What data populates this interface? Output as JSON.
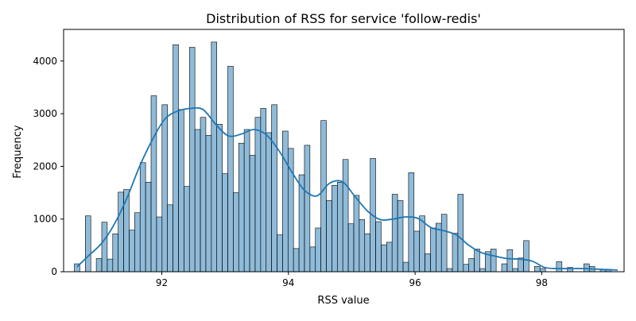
{
  "chart_data": {
    "type": "histogram",
    "title": "Distribution of RSS for service 'follow-redis'",
    "xlabel": "RSS value",
    "ylabel": "Frequency",
    "xlim": [
      90.45,
      99.3
    ],
    "ylim": [
      0,
      4600
    ],
    "x_ticks": [
      92,
      94,
      96,
      98
    ],
    "y_ticks": [
      0,
      1000,
      2000,
      3000,
      4000
    ],
    "bin_start": 90.62,
    "bin_width": 0.0865,
    "counts": [
      150,
      0,
      1060,
      0,
      250,
      940,
      240,
      720,
      1510,
      1560,
      790,
      1120,
      2070,
      1700,
      3340,
      1040,
      3170,
      1270,
      4310,
      3080,
      1620,
      4260,
      2700,
      2930,
      2590,
      4360,
      2800,
      1860,
      3900,
      1500,
      2440,
      2700,
      2210,
      2930,
      3100,
      2640,
      3170,
      700,
      2670,
      2340,
      440,
      1840,
      2400,
      470,
      830,
      2870,
      1350,
      1640,
      1700,
      2130,
      910,
      1450,
      990,
      720,
      2150,
      950,
      510,
      560,
      1470,
      1350,
      180,
      1880,
      770,
      1060,
      340,
      830,
      920,
      1090,
      60,
      730,
      1470,
      140,
      250,
      430,
      60,
      380,
      430,
      0,
      150,
      420,
      60,
      260,
      590,
      0,
      100,
      60,
      0,
      0,
      190,
      0,
      80,
      0,
      0,
      150,
      100,
      0,
      40,
      40
    ],
    "kde": {
      "x": [
        90.66,
        90.85,
        91.05,
        91.25,
        91.45,
        91.65,
        91.85,
        92.05,
        92.25,
        92.45,
        92.65,
        92.85,
        93.05,
        93.25,
        93.45,
        93.65,
        93.85,
        94.05,
        94.25,
        94.45,
        94.65,
        94.85,
        95.05,
        95.25,
        95.45,
        95.65,
        95.85,
        96.05,
        96.25,
        96.45,
        96.65,
        96.85,
        97.05,
        97.25,
        97.45,
        97.65,
        97.85,
        98.05,
        98.25,
        98.45,
        98.65,
        98.85,
        99.05,
        99.2
      ],
      "y": [
        90,
        310,
        540,
        900,
        1400,
        2000,
        2500,
        2900,
        3050,
        3100,
        3080,
        2800,
        2580,
        2610,
        2700,
        2600,
        2300,
        1900,
        1550,
        1440,
        1680,
        1710,
        1430,
        1150,
        990,
        1000,
        1040,
        1010,
        840,
        780,
        700,
        500,
        360,
        300,
        250,
        240,
        200,
        80,
        60,
        60,
        60,
        50,
        40,
        30
      ]
    },
    "bar_color": "#1f77b4",
    "bar_fill_opacity": 0.5,
    "kde_color": "#1f77b4",
    "grid": false,
    "legend": "none"
  }
}
